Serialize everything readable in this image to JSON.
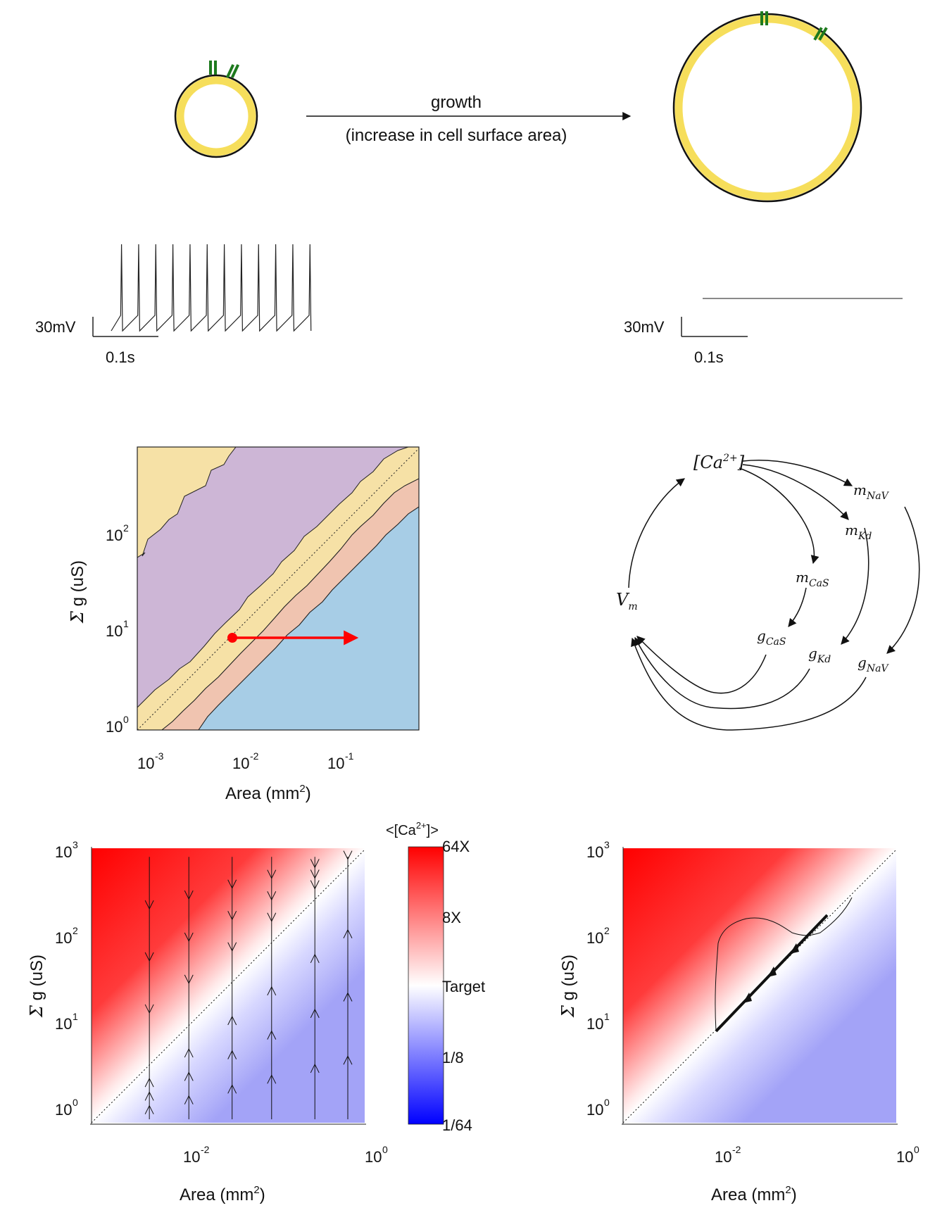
{
  "top_panel": {
    "arrow_label_1": "growth",
    "arrow_label_2": "(increase in cell surface area)",
    "colors": {
      "membrane": "#f6de5b",
      "outline": "#111111",
      "channel": "#1e7a1e"
    }
  },
  "traces": {
    "left": {
      "scale_v": "30mV",
      "scale_t": "0.1s",
      "spike_count": 12
    },
    "right": {
      "scale_v": "30mV",
      "scale_t": "0.1s"
    }
  },
  "diagram": {
    "nodes": {
      "ca": "[Ca2+]",
      "vm": "Vm",
      "m_nav": "mNaV",
      "m_kd": "mKd",
      "m_cas": "mCaS",
      "g_cas": "gCaS",
      "g_kd": "gKd",
      "g_nav": "gNaV"
    }
  },
  "chart_data": [
    {
      "type": "area",
      "description_free": true,
      "xlabel": "Area (mm2)",
      "ylabel": "Σ g (uS)",
      "x_scale": "log",
      "y_scale": "log",
      "xticks": [
        "10-3",
        "10-2",
        "10-1"
      ],
      "yticks": [
        "100",
        "101",
        "102"
      ],
      "xlim": [
        0.0007,
        0.7
      ],
      "ylim": [
        0.8,
        800
      ],
      "region_colors": [
        "#f6e1a6",
        "#cdb6d6",
        "#f0c4b0",
        "#a7cde6"
      ],
      "start_point": {
        "x": 0.006,
        "y": 7.5
      },
      "end_point": {
        "x": 0.12,
        "y": 7.5
      }
    },
    {
      "type": "heatmap",
      "xlabel": "Area (mm2)",
      "ylabel": "Σ g (uS)",
      "x_scale": "log",
      "y_scale": "log",
      "xticks": [
        "10-2",
        "100"
      ],
      "yticks": [
        "100",
        "101",
        "102",
        "103"
      ],
      "colorbar": {
        "title": "<[Ca2+]>",
        "ticks": [
          "64X",
          "8X",
          "Target",
          "1/8",
          "1/64"
        ]
      },
      "flow_x": [
        0.002,
        0.006,
        0.02,
        0.06,
        0.2,
        0.5
      ],
      "flow_direction_above": "down",
      "flow_direction_below": "up"
    },
    {
      "type": "heatmap",
      "xlabel": "Area (mm2)",
      "ylabel": "Σ g (uS)",
      "x_scale": "log",
      "y_scale": "log",
      "xticks": [
        "10-2",
        "100"
      ],
      "yticks": [
        "100",
        "101",
        "102",
        "103"
      ],
      "trajectory": [
        {
          "x": 0.006,
          "y": 7.5
        },
        {
          "x": 0.0065,
          "y": 60
        },
        {
          "x": 0.02,
          "y": 110
        },
        {
          "x": 0.05,
          "y": 80
        },
        {
          "x": 0.12,
          "y": 150
        }
      ],
      "growth_line": {
        "start": {
          "x": 0.006,
          "y": 7.5
        },
        "end": {
          "x": 0.12,
          "y": 150
        }
      }
    }
  ]
}
